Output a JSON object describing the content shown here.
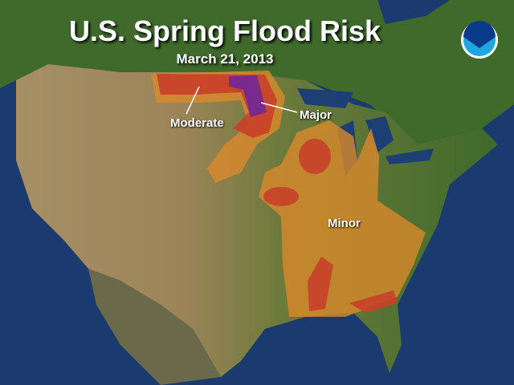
{
  "title": "U.S. Spring Flood Risk",
  "date": "March 21, 2013",
  "logo_text": "NOAA",
  "legend_labels": {
    "moderate": "Moderate",
    "major": "Major",
    "minor": "Minor"
  },
  "colors": {
    "minor": "#d98a2a",
    "moderate": "#c8402a",
    "major": "#7a2a8c",
    "ocean": "#1b3a6e"
  }
}
